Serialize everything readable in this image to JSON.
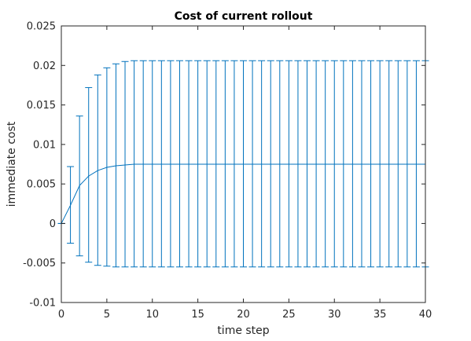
{
  "colors": {
    "series": "#0072BD",
    "axis": "#262626",
    "background": "#ffffff"
  },
  "chart_data": {
    "type": "line",
    "title": "Cost of current rollout",
    "xlabel": "time step",
    "ylabel": "immediate cost",
    "xlim": [
      0,
      40
    ],
    "ylim": [
      -0.01,
      0.025
    ],
    "xticks": [
      0,
      5,
      10,
      15,
      20,
      25,
      30,
      35,
      40
    ],
    "xtick_labels": [
      "0",
      "5",
      "10",
      "15",
      "20",
      "25",
      "30",
      "35",
      "40"
    ],
    "yticks": [
      -0.01,
      -0.005,
      0,
      0.005,
      0.01,
      0.015,
      0.02,
      0.025
    ],
    "ytick_labels": [
      "-0.01",
      "-0.005",
      "0",
      "0.005",
      "0.01",
      "0.015",
      "0.02",
      "0.025"
    ],
    "grid": false,
    "box": true,
    "error_bars": true,
    "series": [
      {
        "x": [
          0,
          1,
          2,
          3,
          4,
          5,
          6,
          7,
          8,
          9,
          10,
          11,
          12,
          13,
          14,
          15,
          16,
          17,
          18,
          19,
          20,
          21,
          22,
          23,
          24,
          25,
          26,
          27,
          28,
          29,
          30,
          31,
          32,
          33,
          34,
          35,
          36,
          37,
          38,
          39,
          40
        ],
        "values": [
          0,
          0.0023,
          0.0048,
          0.006,
          0.0067,
          0.0071,
          0.0073,
          0.0074,
          0.0075,
          0.0075,
          0.0075,
          0.0075,
          0.0075,
          0.0075,
          0.0075,
          0.0075,
          0.0075,
          0.0075,
          0.0075,
          0.0075,
          0.0075,
          0.0075,
          0.0075,
          0.0075,
          0.0075,
          0.0075,
          0.0075,
          0.0075,
          0.0075,
          0.0075,
          0.0075,
          0.0075,
          0.0075,
          0.0075,
          0.0075,
          0.0075,
          0.0075,
          0.0075,
          0.0075,
          0.0075,
          0.0075
        ],
        "upper": [
          0,
          0.0072,
          0.0136,
          0.0172,
          0.0188,
          0.0197,
          0.0202,
          0.0205,
          0.0206,
          0.0206,
          0.0206,
          0.0206,
          0.0206,
          0.0206,
          0.0206,
          0.0206,
          0.0206,
          0.0206,
          0.0206,
          0.0206,
          0.0206,
          0.0206,
          0.0206,
          0.0206,
          0.0206,
          0.0206,
          0.0206,
          0.0206,
          0.0206,
          0.0206,
          0.0206,
          0.0206,
          0.0206,
          0.0206,
          0.0206,
          0.0206,
          0.0206,
          0.0206,
          0.0206,
          0.0206,
          0.0206
        ],
        "lower": [
          0,
          -0.0025,
          -0.0041,
          -0.0049,
          -0.0053,
          -0.0054,
          -0.0055,
          -0.0055,
          -0.0055,
          -0.0055,
          -0.0055,
          -0.0055,
          -0.0055,
          -0.0055,
          -0.0055,
          -0.0055,
          -0.0055,
          -0.0055,
          -0.0055,
          -0.0055,
          -0.0055,
          -0.0055,
          -0.0055,
          -0.0055,
          -0.0055,
          -0.0055,
          -0.0055,
          -0.0055,
          -0.0055,
          -0.0055,
          -0.0055,
          -0.0055,
          -0.0055,
          -0.0055,
          -0.0055,
          -0.0055,
          -0.0055,
          -0.0055,
          -0.0055,
          -0.0055,
          -0.0055
        ]
      }
    ]
  }
}
